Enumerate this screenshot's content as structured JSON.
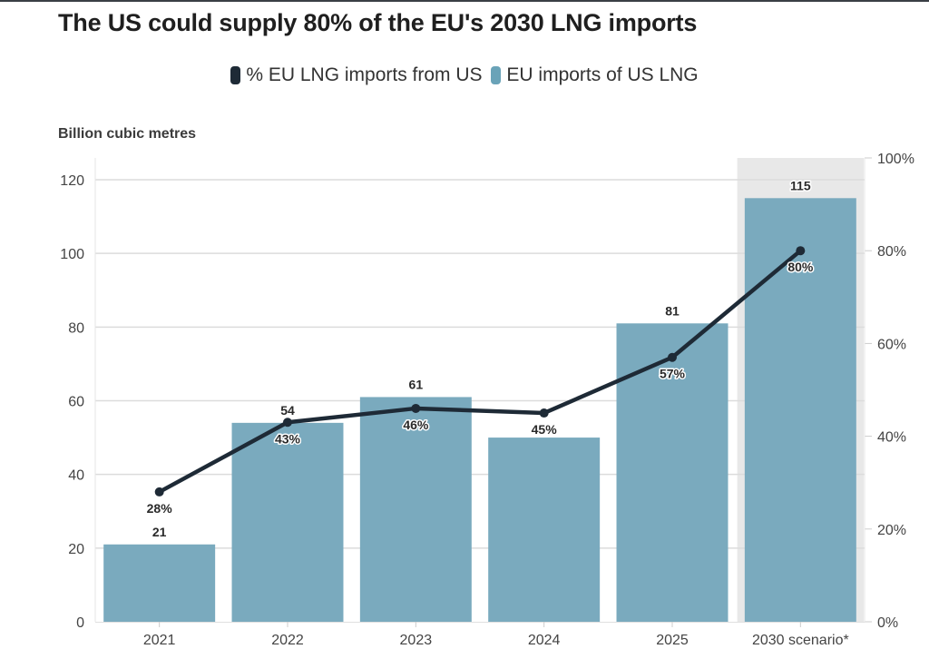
{
  "chart_data": {
    "type": "bar",
    "title": "The US could supply 80% of the EU's 2030 LNG imports",
    "ylabel": "Billion cubic metres",
    "ylabel_right": "",
    "xlabel": "",
    "categories": [
      "2021",
      "2022",
      "2023",
      "2024",
      "2025",
      "2030 scenario*"
    ],
    "highlighted_category": "2030 scenario*",
    "series": [
      {
        "name": "EU imports of US LNG",
        "type": "bar",
        "axis": "left",
        "color": "#7aaabe",
        "values": [
          21,
          54,
          61,
          50,
          81,
          115
        ],
        "labels": [
          "21",
          "54",
          "61",
          "",
          "81",
          "115"
        ]
      },
      {
        "name": "% EU LNG imports from US",
        "type": "line",
        "axis": "right",
        "color": "#1e2a36",
        "values": [
          28,
          43,
          46,
          45,
          57,
          80
        ],
        "labels": [
          "28%",
          "43%",
          "46%",
          "45%",
          "57%",
          "80%"
        ]
      }
    ],
    "ylim": [
      0,
      120
    ],
    "yticks": [
      "0",
      "20",
      "40",
      "60",
      "80",
      "100",
      "120"
    ],
    "ylim_right": [
      0,
      100
    ],
    "yticks_right": [
      "0%",
      "20%",
      "40%",
      "60%",
      "80%",
      "100%"
    ],
    "grid": true,
    "legend_position": "top-center",
    "legend": [
      {
        "label": "% EU LNG imports from US",
        "color": "#1e2a36"
      },
      {
        "label": "EU imports of US LNG",
        "color": "#6aa3b8"
      }
    ]
  }
}
